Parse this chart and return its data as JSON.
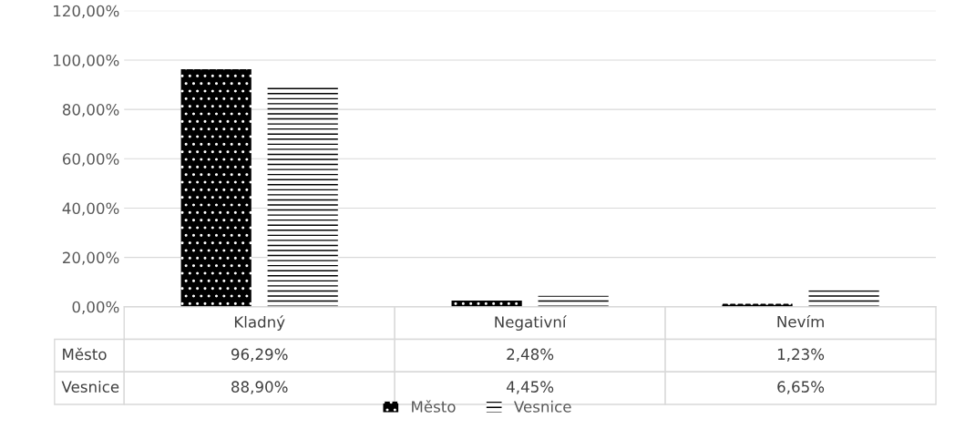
{
  "chart_data": {
    "type": "bar",
    "categories": [
      "Kladný",
      "Negativní",
      "Nevím"
    ],
    "series": [
      {
        "name": "Město",
        "color": "#000000",
        "values": [
          96.29,
          2.48,
          1.23
        ],
        "value_labels": [
          "96,29%",
          "2,48%",
          "1,23%"
        ]
      },
      {
        "name": "Vesnice",
        "color": "#ffffff",
        "values": [
          88.9,
          4.45,
          6.65
        ],
        "value_labels": [
          "88,90%",
          "4,45%",
          "6,65%"
        ]
      }
    ],
    "ylim": [
      0,
      120
    ],
    "yticks": [
      {
        "value": 0,
        "label": "0,00%"
      },
      {
        "value": 20,
        "label": "20,00%"
      },
      {
        "value": 40,
        "label": "40,00%"
      },
      {
        "value": 60,
        "label": "60,00%"
      },
      {
        "value": 80,
        "label": "80,00%"
      },
      {
        "value": 100,
        "label": "100,00%"
      },
      {
        "value": 120,
        "label": "120,00%"
      }
    ],
    "grid": "y",
    "legend": "bottom"
  }
}
